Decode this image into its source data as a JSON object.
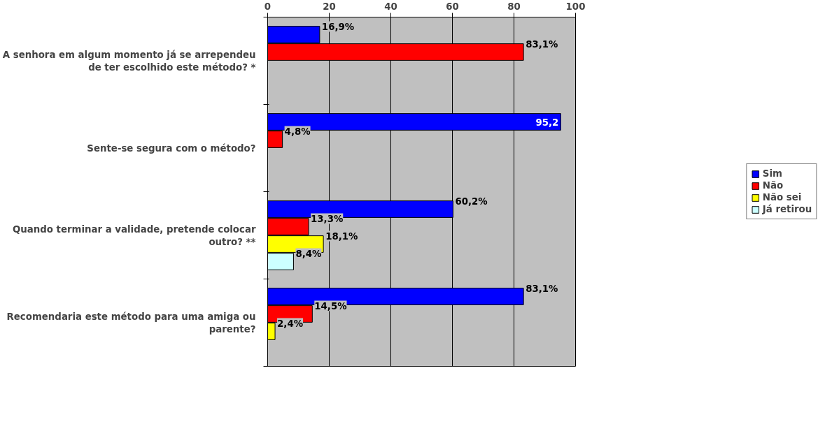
{
  "chart_data": {
    "type": "bar",
    "orientation": "horizontal",
    "categories": [
      "A senhora em algum momento já se arrependeu de ter escolhido este método? *",
      "Sente-se segura com o método?",
      "Quando terminar a validade, pretende colocar outro? **",
      "Recomendaria este método para uma amiga ou parente?"
    ],
    "series": [
      {
        "name": "Sim",
        "color": "#0000ff",
        "values": [
          16.9,
          95.2,
          60.2,
          83.1
        ],
        "value_labels": [
          "16,9%",
          "95,2",
          "60,2%",
          "83,1%"
        ]
      },
      {
        "name": "Não",
        "color": "#ff0000",
        "values": [
          83.1,
          4.8,
          13.3,
          14.5
        ],
        "value_labels": [
          "83,1%",
          "4,8%",
          "13,3%",
          "14,5%"
        ]
      },
      {
        "name": "Não sei",
        "color": "#ffff00",
        "values": [
          null,
          null,
          18.1,
          2.4
        ],
        "value_labels": [
          null,
          null,
          "18,1%",
          "2,4%"
        ]
      },
      {
        "name": "Já retirou",
        "color": "#ccffff",
        "values": [
          null,
          null,
          8.4,
          null
        ],
        "value_labels": [
          null,
          null,
          "8,4%",
          null
        ]
      }
    ],
    "xlim": [
      0,
      100
    ],
    "xticks": [
      0,
      20,
      40,
      60,
      80,
      100
    ],
    "grid": "x",
    "legend": "right"
  }
}
